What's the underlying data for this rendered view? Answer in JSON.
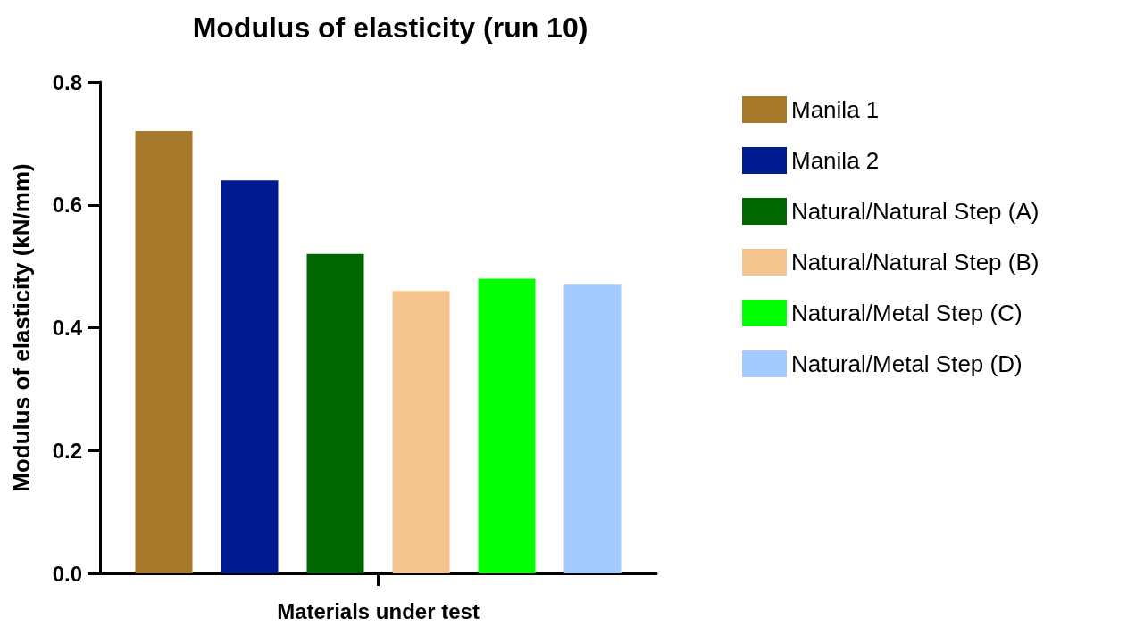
{
  "chart_data": {
    "type": "bar",
    "title": "Modulus of elasticity (run 10)",
    "xlabel": "Materials under test",
    "ylabel": "Modulus of elasticity (kN/mm)",
    "categories": [
      null
    ],
    "series": [
      {
        "name": "Manila 1",
        "color": "#a6792b",
        "values": [
          0.72
        ]
      },
      {
        "name": "Manila 2",
        "color": "#001a8f",
        "values": [
          0.64
        ]
      },
      {
        "name": "Natural/Natural Step (A)",
        "color": "#006600",
        "values": [
          0.52
        ]
      },
      {
        "name": "Natural/Natural Step (B)",
        "color": "#f4c48f",
        "values": [
          0.46
        ]
      },
      {
        "name": "Natural/Metal Step (C)",
        "color": "#00ff00",
        "values": [
          0.48
        ]
      },
      {
        "name": "Natural/Metal Step (D)",
        "color": "#a3cbff",
        "values": [
          0.47
        ]
      }
    ],
    "ylim": [
      0,
      0.8
    ],
    "yticks": [
      {
        "value": 0,
        "label": "0.0"
      },
      0.2,
      0.4,
      0.6,
      0.8
    ],
    "grid": false,
    "legend": "right"
  }
}
